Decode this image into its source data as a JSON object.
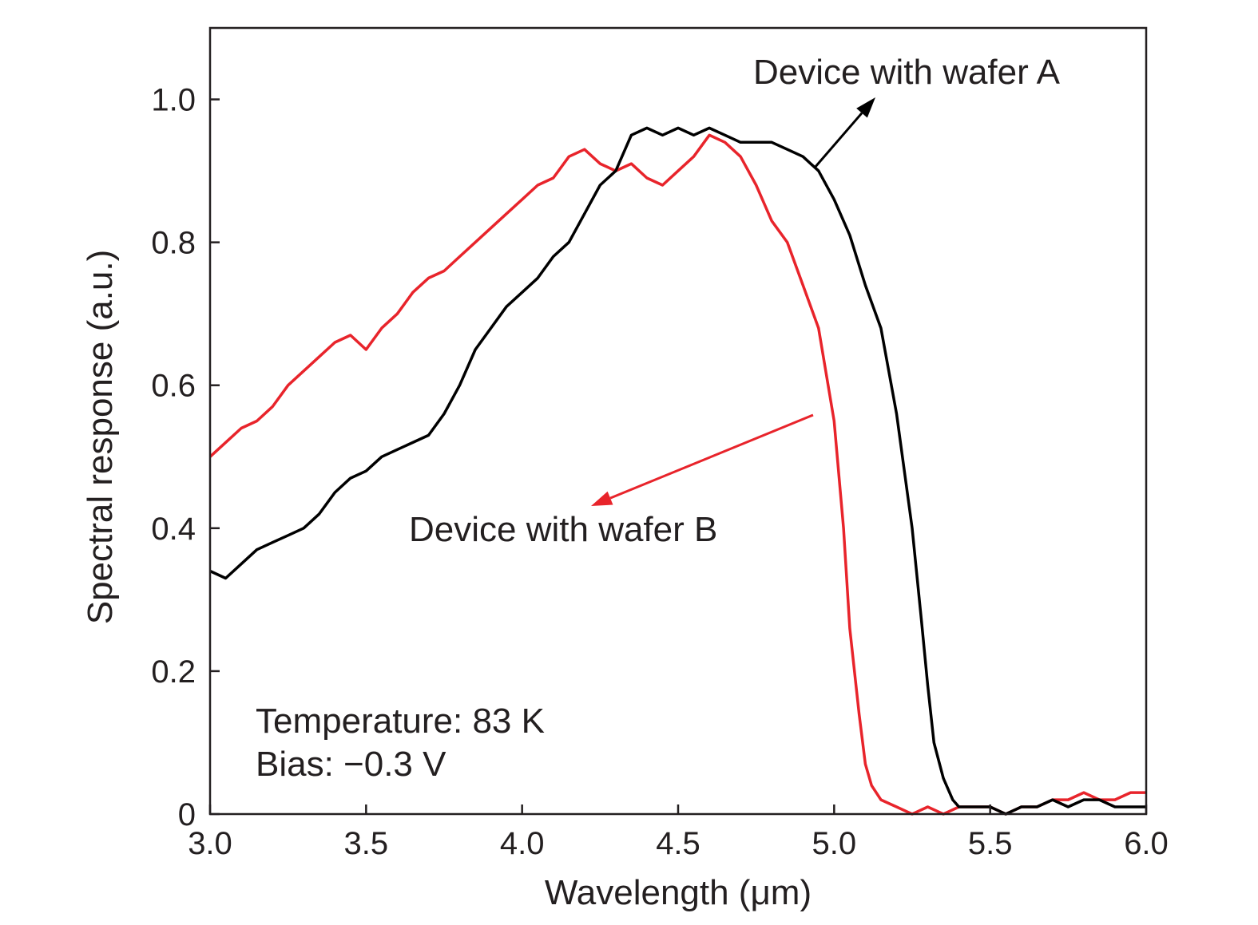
{
  "chart_data": {
    "type": "line",
    "xlabel": "Wavelength (μm)",
    "ylabel": "Spectral response (a.u.)",
    "xlim": [
      3.0,
      6.0
    ],
    "ylim": [
      0,
      1.1
    ],
    "x_ticks": [
      3.0,
      3.5,
      4.0,
      4.5,
      5.0,
      5.5,
      6.0
    ],
    "x_tick_labels": [
      "3.0",
      "3.5",
      "4.0",
      "4.5",
      "5.0",
      "5.5",
      "6.0"
    ],
    "y_ticks": [
      0,
      0.2,
      0.4,
      0.6,
      0.8,
      1.0
    ],
    "y_tick_labels": [
      "0",
      "0.2",
      "0.4",
      "0.6",
      "0.8",
      "1.0"
    ],
    "grid": false,
    "annotations": {
      "series_a_label": "Device with wafer A",
      "series_b_label": "Device with wafer B",
      "temperature": "Temperature: 83 K",
      "bias": "Bias: −0.3 V"
    },
    "series": [
      {
        "name": "Device with wafer A",
        "color": "#000000",
        "x": [
          3.0,
          3.05,
          3.1,
          3.15,
          3.2,
          3.25,
          3.3,
          3.35,
          3.4,
          3.45,
          3.5,
          3.55,
          3.6,
          3.65,
          3.7,
          3.75,
          3.8,
          3.85,
          3.9,
          3.95,
          4.0,
          4.05,
          4.1,
          4.15,
          4.2,
          4.25,
          4.3,
          4.35,
          4.4,
          4.45,
          4.5,
          4.55,
          4.6,
          4.65,
          4.7,
          4.75,
          4.8,
          4.85,
          4.9,
          4.95,
          5.0,
          5.05,
          5.1,
          5.15,
          5.2,
          5.25,
          5.28,
          5.3,
          5.32,
          5.35,
          5.38,
          5.4,
          5.45,
          5.5,
          5.55,
          5.6,
          5.65,
          5.7,
          5.75,
          5.8,
          5.85,
          5.9,
          5.95,
          6.0
        ],
        "y": [
          0.34,
          0.33,
          0.35,
          0.37,
          0.38,
          0.39,
          0.4,
          0.42,
          0.45,
          0.47,
          0.48,
          0.5,
          0.51,
          0.52,
          0.53,
          0.56,
          0.6,
          0.65,
          0.68,
          0.71,
          0.73,
          0.75,
          0.78,
          0.8,
          0.84,
          0.88,
          0.9,
          0.95,
          0.96,
          0.95,
          0.96,
          0.95,
          0.96,
          0.95,
          0.94,
          0.94,
          0.94,
          0.93,
          0.92,
          0.9,
          0.86,
          0.81,
          0.74,
          0.68,
          0.56,
          0.4,
          0.27,
          0.18,
          0.1,
          0.05,
          0.02,
          0.01,
          0.01,
          0.01,
          0.0,
          0.01,
          0.01,
          0.02,
          0.01,
          0.02,
          0.02,
          0.01,
          0.01,
          0.01
        ]
      },
      {
        "name": "Device with wafer B",
        "color": "#e8242b",
        "x": [
          3.0,
          3.05,
          3.1,
          3.15,
          3.2,
          3.25,
          3.3,
          3.35,
          3.4,
          3.45,
          3.5,
          3.55,
          3.6,
          3.65,
          3.7,
          3.75,
          3.8,
          3.85,
          3.9,
          3.95,
          4.0,
          4.05,
          4.1,
          4.15,
          4.2,
          4.25,
          4.3,
          4.35,
          4.4,
          4.45,
          4.5,
          4.55,
          4.6,
          4.65,
          4.7,
          4.75,
          4.8,
          4.85,
          4.9,
          4.95,
          5.0,
          5.03,
          5.05,
          5.08,
          5.1,
          5.12,
          5.15,
          5.2,
          5.25,
          5.3,
          5.35,
          5.4,
          5.45,
          5.5,
          5.55,
          5.6,
          5.65,
          5.7,
          5.75,
          5.8,
          5.85,
          5.9,
          5.95,
          6.0
        ],
        "y": [
          0.5,
          0.52,
          0.54,
          0.55,
          0.57,
          0.6,
          0.62,
          0.64,
          0.66,
          0.67,
          0.65,
          0.68,
          0.7,
          0.73,
          0.75,
          0.76,
          0.78,
          0.8,
          0.82,
          0.84,
          0.86,
          0.88,
          0.89,
          0.92,
          0.93,
          0.91,
          0.9,
          0.91,
          0.89,
          0.88,
          0.9,
          0.92,
          0.95,
          0.94,
          0.92,
          0.88,
          0.83,
          0.8,
          0.74,
          0.68,
          0.55,
          0.4,
          0.26,
          0.14,
          0.07,
          0.04,
          0.02,
          0.01,
          0.0,
          0.01,
          0.0,
          0.01,
          0.01,
          0.01,
          0.0,
          0.01,
          0.01,
          0.02,
          0.02,
          0.03,
          0.02,
          0.02,
          0.03,
          0.03
        ]
      }
    ]
  }
}
